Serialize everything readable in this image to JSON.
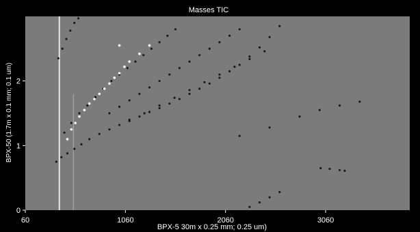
{
  "chart_data": {
    "type": "scatter",
    "title": "Masses  TIC",
    "xlabel": "BPX-5 30m x 0.25 mm; 0.25 um)",
    "ylabel": "BPX-50 (1.7m x 0.1 mm; 0.1 um)",
    "xlim": [
      60,
      3900
    ],
    "ylim": [
      0,
      3.0
    ],
    "x_ticks": [
      60,
      1060,
      2060,
      3060
    ],
    "x_tick_labels": [
      "60",
      "1060",
      "2060",
      "3060"
    ],
    "y_ticks": [
      0,
      1,
      2
    ],
    "y_tick_labels": [
      "0",
      "1",
      "2"
    ],
    "grid": false,
    "legend": "none",
    "colors": {
      "background": "#000000",
      "plot_area": "#7b7b7b",
      "points_dark": "#1a1a1a",
      "points_bright": "#ffffff"
    },
    "series": [
      {
        "points": [
          [
            370,
            0.75
          ],
          [
            420,
            0.82
          ],
          [
            480,
            0.88
          ],
          [
            550,
            0.95
          ],
          [
            620,
            1.02
          ],
          [
            700,
            1.1
          ],
          [
            800,
            1.18
          ],
          [
            900,
            1.25
          ],
          [
            1000,
            1.32
          ],
          [
            1100,
            1.38
          ],
          [
            1200,
            1.45
          ],
          [
            1300,
            1.52
          ],
          [
            1400,
            1.58
          ],
          [
            1500,
            1.65
          ],
          [
            1600,
            1.72
          ],
          [
            1700,
            1.8
          ],
          [
            1800,
            1.88
          ],
          [
            1900,
            1.96
          ],
          [
            2000,
            2.05
          ],
          [
            2100,
            2.15
          ],
          [
            2200,
            2.25
          ],
          [
            2300,
            2.38
          ],
          [
            2400,
            2.52
          ],
          [
            2500,
            2.68
          ],
          [
            2600,
            2.85
          ],
          [
            450,
            1.2
          ],
          [
            520,
            1.35
          ],
          [
            600,
            1.5
          ],
          [
            680,
            1.62
          ],
          [
            760,
            1.75
          ],
          [
            840,
            1.88
          ],
          [
            920,
            2.0
          ],
          [
            1000,
            2.1
          ],
          [
            1080,
            2.2
          ],
          [
            1160,
            2.3
          ],
          [
            1240,
            2.4
          ],
          [
            1320,
            2.5
          ],
          [
            1400,
            2.6
          ],
          [
            1480,
            2.7
          ],
          [
            1560,
            2.8
          ],
          [
            900,
            1.5
          ],
          [
            1000,
            1.6
          ],
          [
            1100,
            1.7
          ],
          [
            1200,
            1.8
          ],
          [
            1300,
            1.9
          ],
          [
            1400,
            2.0
          ],
          [
            1500,
            2.1
          ],
          [
            1600,
            2.2
          ],
          [
            1700,
            2.3
          ],
          [
            1800,
            2.4
          ],
          [
            1900,
            2.5
          ],
          [
            2000,
            2.6
          ],
          [
            2100,
            2.7
          ],
          [
            2200,
            2.8
          ],
          [
            1100,
            1.4
          ],
          [
            1250,
            1.5
          ],
          [
            1400,
            1.62
          ],
          [
            1550,
            1.74
          ],
          [
            1700,
            1.86
          ],
          [
            1850,
            1.98
          ],
          [
            2000,
            2.1
          ],
          [
            2150,
            2.22
          ],
          [
            2300,
            2.34
          ],
          [
            2450,
            2.46
          ],
          [
            390,
            2.35
          ],
          [
            430,
            2.5
          ],
          [
            470,
            2.65
          ],
          [
            510,
            2.78
          ],
          [
            550,
            2.9
          ],
          [
            590,
            2.97
          ],
          [
            2200,
            1.15
          ],
          [
            2500,
            1.28
          ],
          [
            2800,
            1.45
          ],
          [
            3000,
            1.55
          ],
          [
            3200,
            1.62
          ],
          [
            3400,
            1.68
          ],
          [
            3010,
            0.65
          ],
          [
            3100,
            0.64
          ],
          [
            3200,
            0.62
          ],
          [
            3250,
            0.61
          ],
          [
            2300,
            0.05
          ],
          [
            2400,
            0.12
          ],
          [
            2500,
            0.2
          ],
          [
            2600,
            0.28
          ]
        ]
      }
    ],
    "bright_points": [
      [
        480,
        1.1
      ],
      [
        520,
        1.25
      ],
      [
        560,
        1.35
      ],
      [
        600,
        1.45
      ],
      [
        650,
        1.55
      ],
      [
        700,
        1.65
      ],
      [
        750,
        1.72
      ],
      [
        800,
        1.8
      ],
      [
        850,
        1.88
      ],
      [
        900,
        1.96
      ],
      [
        950,
        2.05
      ],
      [
        1000,
        2.12
      ],
      [
        1050,
        2.22
      ],
      [
        1100,
        2.3
      ],
      [
        1200,
        2.42
      ],
      [
        1300,
        2.55
      ],
      [
        1000,
        2.55
      ]
    ],
    "vertical_streaks": [
      {
        "x": 400,
        "y_from": 0.0,
        "y_to": 3.0
      },
      {
        "x": 540,
        "y_from": 0.0,
        "y_to": 1.8
      }
    ]
  }
}
